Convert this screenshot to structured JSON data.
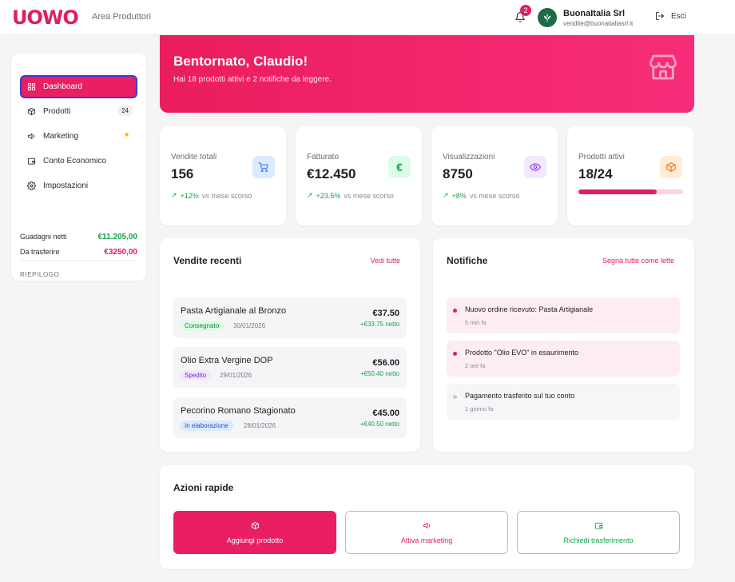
{
  "header": {
    "logo": "UOWO",
    "area": "Area Produttori",
    "notifications_count": "2",
    "company_name": "BuonaItalia Srl",
    "company_email": "vendite@buonaitaliasrl.it",
    "logout_label": "Esci"
  },
  "sidebar": {
    "items": [
      {
        "label": "Dashboard",
        "icon": "grid-icon"
      },
      {
        "label": "Prodotti",
        "icon": "box-icon",
        "count": "24"
      },
      {
        "label": "Marketing",
        "icon": "megaphone-icon",
        "extra": "sparkle-icon"
      },
      {
        "label": "Conto Economico",
        "icon": "wallet-icon"
      },
      {
        "label": "Impostazioni",
        "icon": "gear-icon"
      }
    ],
    "summary_title": "RIEPILOGO",
    "summary": [
      {
        "label": "Guadagni netti",
        "value": "€11.205,00",
        "color": "#16a34a"
      },
      {
        "label": "Da trasferire",
        "value": "€3250,00",
        "color": "#e11d63"
      }
    ]
  },
  "hero": {
    "title": "Bentornato, Claudio!",
    "subtitle": "Hai 18 prodotti attivi e 2 notifiche da leggere."
  },
  "stats": [
    {
      "label": "Vendite totali",
      "value": "156",
      "trend": "+12%",
      "trend_suffix": "vs mese scorso",
      "icon": "cart-icon",
      "icon_bg": "#dbeafe",
      "icon_color": "#3b82f6"
    },
    {
      "label": "Fatturato",
      "value": "€12.450",
      "trend": "+23.5%",
      "trend_suffix": "vs mese scorso",
      "icon": "euro-icon",
      "icon_bg": "#dcfce7",
      "icon_color": "#16a34a",
      "icon_glyph": "€"
    },
    {
      "label": "Visualizzazioni",
      "value": "8750",
      "trend": "+8%",
      "trend_suffix": "vs mese scorso",
      "icon": "eye-icon",
      "icon_bg": "#f3e8ff",
      "icon_color": "#9333ea"
    },
    {
      "label": "Prodotti attivi",
      "value": "18/24",
      "progress": 0.75,
      "icon": "box-icon",
      "icon_bg": "#ffedd5",
      "icon_color": "#f97316"
    }
  ],
  "recent_sales": {
    "title": "Vendite recenti",
    "link": "Vedi tutte",
    "items": [
      {
        "name": "Pasta Artigianale al Bronzo",
        "status": "Consegnato",
        "date": "30/01/2026",
        "price": "€37.50",
        "net": "+€33.75 netto",
        "status_bg": "#dcfce7",
        "status_color": "#15803d"
      },
      {
        "name": "Olio Extra Vergine DOP",
        "status": "Spedito",
        "date": "29/01/2026",
        "price": "€56.00",
        "net": "+€50.40 netto",
        "status_bg": "#f3e8ff",
        "status_color": "#7e22ce"
      },
      {
        "name": "Pecorino Romano Stagionato",
        "status": "In elaborazione",
        "date": "28/01/2026",
        "price": "€45.00",
        "net": "+€40.50 netto",
        "status_bg": "#dbeafe",
        "status_color": "#1d4ed8"
      }
    ]
  },
  "notifications": {
    "title": "Notifiche",
    "link": "Segna tutte come lette",
    "items": [
      {
        "text": "Nuovo ordine ricevuto: Pasta Artigianale",
        "time": "5 min fa",
        "unread": true
      },
      {
        "text": "Prodotto \"Olio EVO\" in esaurimento",
        "time": "2 ore fa",
        "unread": true
      },
      {
        "text": "Pagamento trasferito sul tuo conto",
        "time": "1 giorno fa",
        "unread": false
      }
    ]
  },
  "quick_actions": {
    "title": "Azioni rapide",
    "buttons": [
      {
        "label": "Aggiungi prodotto",
        "icon": "box-icon"
      },
      {
        "label": "Attiva marketing",
        "icon": "megaphone-icon"
      },
      {
        "label": "Richiedi trasferimento",
        "icon": "wallet-icon"
      }
    ]
  },
  "colors": {
    "brand": "#e11d63",
    "success": "#16a34a"
  }
}
